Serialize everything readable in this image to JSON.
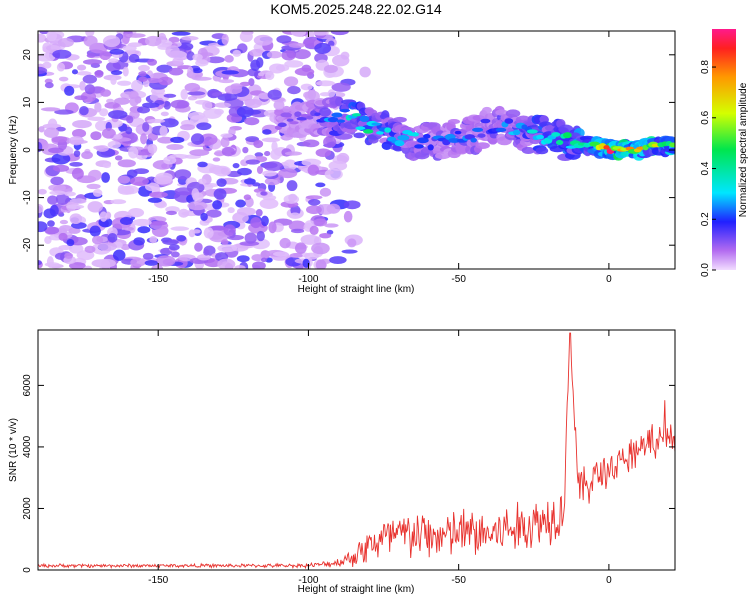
{
  "title": "KOM5.2025.248.22.02.G14",
  "chart_data": [
    {
      "type": "heatmap",
      "panel": "spectrogram",
      "xlabel": "Height of straight line (km)",
      "ylabel": "Frequency (Hz)",
      "xlim": [
        -190,
        22
      ],
      "ylim": [
        -25,
        25
      ],
      "xticks": [
        -150,
        -100,
        -50,
        0
      ],
      "yticks": [
        -20,
        -10,
        0,
        10,
        20
      ],
      "noise_region_x": [
        -190,
        -88
      ],
      "signal_ridge": {
        "x": [
          -110,
          -100,
          -95,
          -90,
          -85,
          -80,
          -75,
          -70,
          -65,
          -60,
          -55,
          -50,
          -45,
          -40,
          -35,
          -30,
          -25,
          -20,
          -15,
          -10,
          -5,
          0,
          5,
          10,
          15,
          20
        ],
        "freq": [
          6,
          6,
          7,
          7,
          7,
          5,
          4,
          3,
          2,
          2,
          2,
          3,
          3,
          5,
          5,
          4,
          3,
          3,
          2,
          1,
          1,
          0,
          0,
          0,
          1,
          1
        ],
        "amplitude": [
          0.12,
          0.15,
          0.22,
          0.32,
          0.38,
          0.4,
          0.38,
          0.35,
          0.3,
          0.25,
          0.22,
          0.25,
          0.22,
          0.22,
          0.25,
          0.3,
          0.35,
          0.4,
          0.45,
          0.5,
          0.6,
          0.85,
          0.9,
          0.8,
          0.65,
          0.55
        ]
      },
      "colorbar": {
        "label": "Normalized spectral amplitude",
        "range": [
          0,
          0.95
        ],
        "ticks": [
          0.0,
          0.2,
          0.4,
          0.6,
          0.8
        ],
        "tick_labels": [
          "0.0",
          "0.2",
          "0.4",
          "0.6",
          "0.8"
        ]
      }
    },
    {
      "type": "line",
      "panel": "snr",
      "xlabel": "Height of straight line (km)",
      "ylabel": "SNR (10 * v/v)",
      "xlim": [
        -190,
        22
      ],
      "ylim": [
        0,
        7800
      ],
      "xticks": [
        -150,
        -100,
        -50,
        0
      ],
      "yticks": [
        0,
        2000,
        4000,
        6000
      ],
      "series": [
        {
          "name": "SNR",
          "color": "#e8322e",
          "x": [
            -190,
            -180,
            -170,
            -160,
            -150,
            -140,
            -130,
            -120,
            -110,
            -100,
            -95,
            -90,
            -85,
            -80,
            -75,
            -70,
            -65,
            -60,
            -55,
            -50,
            -45,
            -40,
            -35,
            -30,
            -25,
            -20,
            -15,
            -13,
            -10,
            -5,
            0,
            5,
            10,
            15,
            20,
            22
          ],
          "y": [
            140,
            140,
            140,
            140,
            140,
            140,
            140,
            140,
            140,
            150,
            180,
            250,
            450,
            800,
            1000,
            1100,
            1150,
            1100,
            1100,
            1200,
            1200,
            1150,
            1300,
            1350,
            1500,
            1700,
            2000,
            7700,
            2500,
            3000,
            3300,
            3500,
            4000,
            4100,
            4300,
            4300
          ],
          "spread": [
            50,
            50,
            50,
            50,
            50,
            50,
            50,
            50,
            50,
            60,
            80,
            120,
            300,
            500,
            650,
            700,
            700,
            650,
            650,
            700,
            700,
            650,
            700,
            700,
            750,
            750,
            700,
            0,
            650,
            550,
            500,
            500,
            450,
            400,
            350,
            350
          ]
        }
      ]
    }
  ]
}
